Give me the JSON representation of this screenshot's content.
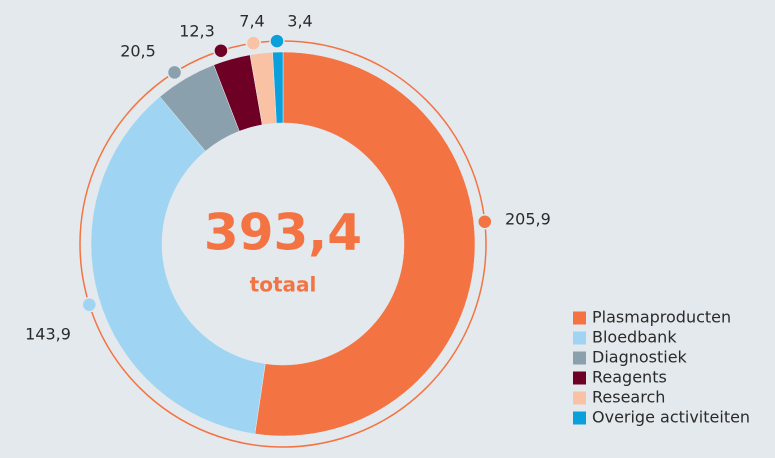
{
  "chart_data": {
    "type": "donut",
    "categories": [
      "Plasmaproducten",
      "Bloedbank",
      "Diagnostiek",
      "Reagents",
      "Research",
      "Overige activiteiten"
    ],
    "values": [
      205.9,
      143.9,
      20.5,
      12.3,
      7.4,
      3.4
    ],
    "value_labels": [
      "205,9",
      "143,9",
      "20,5",
      "12,3",
      "7,4",
      "3,4"
    ],
    "colors": [
      "#f47342",
      "#9fd4f2",
      "#8aa0ad",
      "#6d0024",
      "#f9c2a5",
      "#0aa0dc"
    ],
    "center_text": "393,4",
    "center_subtext": "totaal",
    "legend": "bottom-right"
  }
}
